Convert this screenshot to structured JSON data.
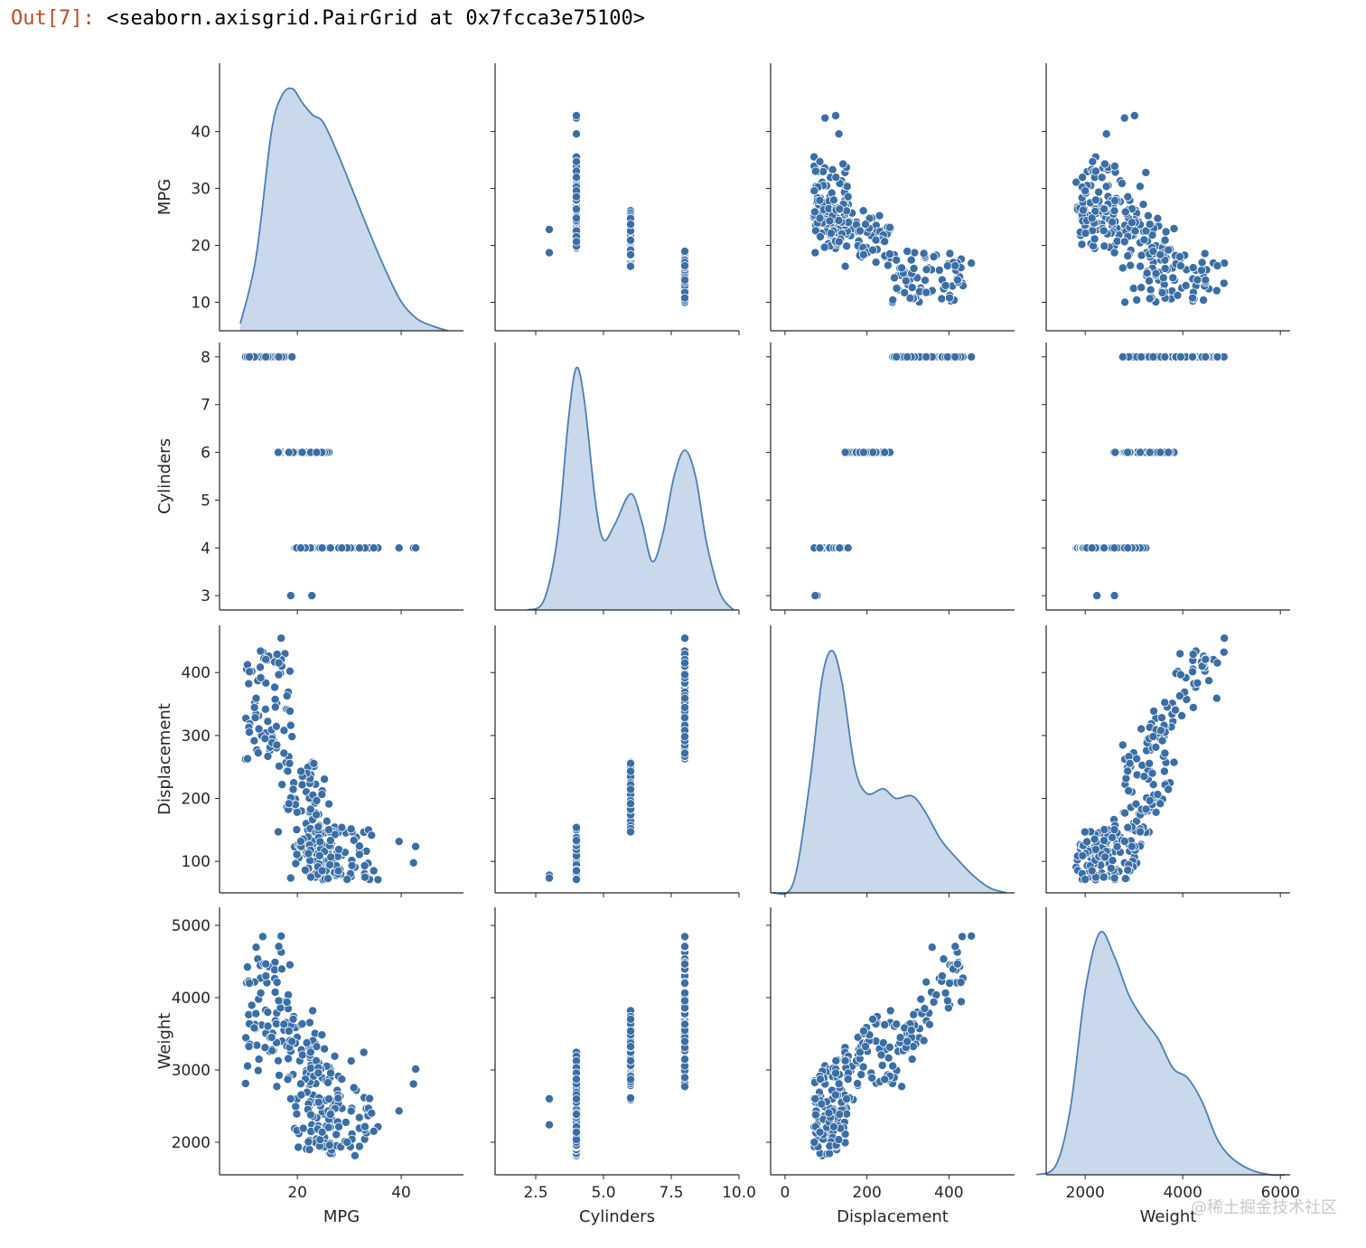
{
  "output": {
    "prompt": "Out[7]:",
    "text": "<seaborn.axisgrid.PairGrid at 0x7fcca3e75100>"
  },
  "watermark": "@稀土掘金技术社区",
  "colors": {
    "marker": "#3a6ea5",
    "kde_fill": "#c9d8ea",
    "kde_line": "#4c7fb3"
  },
  "chart_data": {
    "type": "pairplot",
    "variables": [
      {
        "name": "MPG",
        "label": "MPG",
        "range": [
          5,
          52
        ],
        "ticks": [
          10,
          20,
          30,
          40
        ],
        "tick_labels": [
          "10",
          "20",
          "30",
          "40"
        ],
        "x_ticks": [
          20,
          40
        ],
        "x_tick_labels": [
          "20",
          "40"
        ]
      },
      {
        "name": "Cylinders",
        "label": "Cylinders",
        "range": [
          2.7,
          8.3
        ],
        "ticks": [
          3,
          4,
          5,
          6,
          7,
          8
        ],
        "tick_labels": [
          "3",
          "4",
          "5",
          "6",
          "7",
          "8"
        ],
        "x_range": [
          1,
          10
        ],
        "x_ticks": [
          2.5,
          5.0,
          7.5,
          10.0
        ],
        "x_tick_labels": [
          "2.5",
          "5.0",
          "7.5",
          "10.0"
        ]
      },
      {
        "name": "Displacement",
        "label": "Displacement",
        "range": [
          50,
          475
        ],
        "ticks": [
          100,
          200,
          300,
          400
        ],
        "tick_labels": [
          "100",
          "200",
          "300",
          "400"
        ],
        "x_range": [
          -35,
          560
        ],
        "x_ticks": [
          0,
          200,
          400
        ],
        "x_tick_labels": [
          "0",
          "200",
          "400"
        ]
      },
      {
        "name": "Weight",
        "label": "Weight",
        "range": [
          1550,
          5250
        ],
        "ticks": [
          2000,
          3000,
          4000,
          5000
        ],
        "tick_labels": [
          "2000",
          "3000",
          "4000",
          "5000"
        ],
        "x_range": [
          1200,
          6200
        ],
        "x_ticks": [
          2000,
          4000,
          6000
        ],
        "x_tick_labels": [
          "2000",
          "4000",
          "6000"
        ]
      }
    ],
    "kde": {
      "MPG": {
        "x": [
          9,
          12,
          15,
          17,
          19,
          21,
          23,
          25,
          28,
          31,
          34,
          37,
          40,
          43,
          46,
          49
        ],
        "density": [
          0.03,
          0.3,
          0.82,
          0.97,
          1.0,
          0.94,
          0.89,
          0.86,
          0.72,
          0.56,
          0.4,
          0.25,
          0.12,
          0.05,
          0.02,
          0.0
        ]
      },
      "Cylinders": {
        "x": [
          2.2,
          2.8,
          3.3,
          3.7,
          4.0,
          4.3,
          4.7,
          5.0,
          5.4,
          6.0,
          6.4,
          6.8,
          7.2,
          7.6,
          8.0,
          8.4,
          8.8,
          9.3,
          9.8
        ],
        "density": [
          0.0,
          0.04,
          0.3,
          0.78,
          1.0,
          0.86,
          0.45,
          0.29,
          0.35,
          0.48,
          0.37,
          0.2,
          0.32,
          0.55,
          0.66,
          0.55,
          0.28,
          0.07,
          0.0
        ]
      },
      "Displacement": {
        "x": [
          -30,
          20,
          60,
          90,
          115,
          140,
          170,
          200,
          240,
          270,
          310,
          340,
          380,
          420,
          460,
          500,
          540
        ],
        "density": [
          0.0,
          0.04,
          0.45,
          0.88,
          1.0,
          0.86,
          0.52,
          0.41,
          0.43,
          0.39,
          0.4,
          0.34,
          0.22,
          0.14,
          0.07,
          0.02,
          0.0
        ]
      },
      "Weight": {
        "x": [
          1000,
          1400,
          1700,
          2000,
          2300,
          2600,
          2900,
          3200,
          3500,
          3800,
          4100,
          4400,
          4700,
          5000,
          5400,
          5800,
          6100
        ],
        "density": [
          0.0,
          0.04,
          0.28,
          0.76,
          1.0,
          0.9,
          0.74,
          0.64,
          0.56,
          0.44,
          0.4,
          0.3,
          0.15,
          0.07,
          0.02,
          0.0,
          0.0
        ]
      }
    }
  }
}
